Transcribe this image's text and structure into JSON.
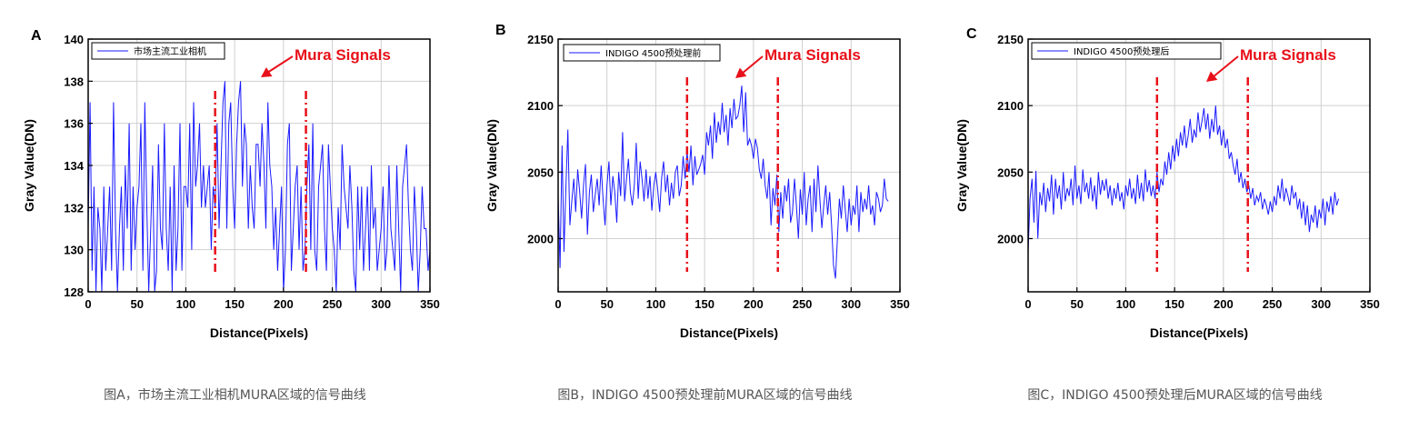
{
  "chart_data": [
    {
      "type": "line",
      "panel_letter": "A",
      "xlabel": "Distance(Pixels)",
      "ylabel": "Gray Value(DN)",
      "xlim": [
        0,
        350
      ],
      "ylim": [
        128,
        140
      ],
      "xticks": [
        0,
        50,
        100,
        150,
        200,
        250,
        300,
        350
      ],
      "yticks": [
        128,
        130,
        132,
        134,
        136,
        138,
        140
      ],
      "grid": true,
      "legend_position": "top-left",
      "series": [
        {
          "name": "市场主流工业相机",
          "color": "#1a1aff",
          "x_start": 0,
          "x_step": 2,
          "values": [
            131,
            137,
            129,
            133,
            128,
            132,
            131,
            128,
            133,
            129,
            131,
            133,
            129,
            137,
            131,
            128,
            131,
            133,
            129,
            134,
            131,
            136,
            129,
            133,
            130,
            132,
            133,
            136,
            129,
            137,
            132,
            128,
            131,
            134,
            128,
            129,
            135,
            131,
            130,
            136,
            131,
            129,
            133,
            128,
            134,
            129,
            131,
            136,
            129,
            133,
            133,
            132,
            136,
            130,
            137,
            133,
            134,
            136,
            132,
            134,
            132,
            133,
            134,
            130,
            133,
            132,
            136,
            131,
            134,
            137,
            138,
            131,
            136,
            137,
            133,
            131,
            135,
            137,
            138,
            133,
            136,
            135,
            131,
            134,
            132,
            131,
            135,
            135,
            133,
            136,
            134,
            131,
            137,
            134,
            133,
            130,
            132,
            129,
            131,
            133,
            128,
            130,
            135,
            136,
            129,
            131,
            133,
            134,
            130,
            133,
            129,
            130,
            133,
            135,
            130,
            136,
            130,
            129,
            133,
            134,
            135,
            131,
            129,
            135,
            133,
            131,
            130,
            128,
            132,
            130,
            135,
            133,
            132,
            131,
            134,
            132,
            129,
            128,
            133,
            130,
            133,
            129,
            131,
            133,
            129,
            134,
            131,
            132,
            129,
            130,
            131,
            133,
            129,
            130,
            134,
            131,
            130,
            129,
            134,
            131,
            128,
            133,
            134,
            135,
            132,
            130,
            129,
            133,
            131,
            128,
            130,
            133,
            131,
            131,
            129,
            130
          ]
        }
      ],
      "annotations": [
        {
          "text": "Mura Signals",
          "color": "#e8101a"
        }
      ],
      "mura_lines_x": [
        130,
        223
      ]
    },
    {
      "type": "line",
      "panel_letter": "B",
      "xlabel": "Distance(Pixels)",
      "ylabel": "Gray Value(DN)",
      "xlim": [
        0,
        350
      ],
      "ylim": [
        1960,
        2150
      ],
      "xticks": [
        0,
        50,
        100,
        150,
        200,
        250,
        300,
        350
      ],
      "yticks": [
        2000,
        2050,
        2100,
        2150
      ],
      "grid": true,
      "legend_position": "top-left",
      "series": [
        {
          "name": "INDIGO 4500预处理前",
          "color": "#1a1aff",
          "x_start": 0,
          "x_step": 2,
          "values": [
            2032,
            1978,
            2070,
            1990,
            2040,
            2082,
            2010,
            2028,
            2045,
            2020,
            2052,
            2036,
            2015,
            2040,
            2056,
            2003,
            2035,
            2048,
            2020,
            2033,
            2045,
            2025,
            2055,
            2030,
            2010,
            2040,
            2058,
            2025,
            2047,
            2035,
            2012,
            2050,
            2032,
            2080,
            2028,
            2045,
            2060,
            2035,
            2025,
            2040,
            2072,
            2030,
            2058,
            2044,
            2028,
            2052,
            2030,
            2047,
            2021,
            2040,
            2050,
            2036,
            2020,
            2046,
            2058,
            2035,
            2048,
            2025,
            2042,
            2030,
            2050,
            2055,
            2032,
            2040,
            2062,
            2045,
            2065,
            2050,
            2070,
            2040,
            2062,
            2048,
            2052,
            2056,
            2063,
            2048,
            2080,
            2070,
            2085,
            2060,
            2095,
            2072,
            2088,
            2078,
            2102,
            2080,
            2093,
            2070,
            2098,
            2083,
            2105,
            2090,
            2092,
            2100,
            2115,
            2080,
            2110,
            2070,
            2075,
            2070,
            2060,
            2075,
            2068,
            2052,
            2045,
            2060,
            2040,
            2030,
            2050,
            2010,
            2038,
            2025,
            2048,
            2005,
            2035,
            2015,
            2040,
            2028,
            2045,
            2012,
            2020,
            2045,
            2025,
            2000,
            2037,
            2018,
            2050,
            2010,
            2030,
            2040,
            2005,
            2045,
            2020,
            2055,
            2030,
            2008,
            2025,
            2040,
            2018,
            2035,
            2010,
            1980,
            1970,
            2000,
            2030,
            2015,
            2040,
            2022,
            2005,
            2030,
            2010,
            2025,
            2018,
            2040,
            2005,
            2035,
            2020,
            2030,
            2022,
            2040,
            2018,
            2025,
            2010,
            2035,
            2030,
            2020,
            2025,
            2045,
            2030,
            2028
          ]
        }
      ],
      "annotations": [
        {
          "text": "Mura Signals",
          "color": "#e8101a"
        }
      ],
      "mura_lines_x": [
        132,
        225
      ]
    },
    {
      "type": "line",
      "panel_letter": "C",
      "xlabel": "Distance(Pixels)",
      "ylabel": "Gray Value(DN)",
      "xlim": [
        0,
        350
      ],
      "ylim": [
        1960,
        2150
      ],
      "xticks": [
        0,
        50,
        100,
        150,
        200,
        250,
        300,
        350
      ],
      "yticks": [
        2000,
        2050,
        2100,
        2150
      ],
      "grid": true,
      "legend_position": "top-left",
      "series": [
        {
          "name": "INDIGO 4500预处理后",
          "color": "#1a1aff",
          "x_start": 0,
          "x_step": 2,
          "values": [
            1990,
            2030,
            2045,
            2012,
            2051,
            2000,
            2035,
            2025,
            2042,
            2020,
            2038,
            2028,
            2048,
            2018,
            2045,
            2030,
            2040,
            2022,
            2050,
            2028,
            2038,
            2032,
            2045,
            2025,
            2055,
            2030,
            2040,
            2026,
            2052,
            2035,
            2042,
            2030,
            2046,
            2028,
            2040,
            2022,
            2050,
            2033,
            2044,
            2036,
            2045,
            2030,
            2040,
            2025,
            2038,
            2030,
            2042,
            2028,
            2035,
            2022,
            2040,
            2032,
            2045,
            2030,
            2038,
            2026,
            2048,
            2030,
            2042,
            2028,
            2052,
            2035,
            2044,
            2032,
            2040,
            2030,
            2050,
            2035,
            2045,
            2040,
            2058,
            2048,
            2065,
            2052,
            2070,
            2058,
            2075,
            2062,
            2080,
            2070,
            2085,
            2068,
            2078,
            2090,
            2072,
            2082,
            2076,
            2095,
            2080,
            2088,
            2098,
            2082,
            2094,
            2075,
            2090,
            2080,
            2100,
            2078,
            2085,
            2070,
            2082,
            2068,
            2075,
            2060,
            2065,
            2055,
            2048,
            2060,
            2042,
            2050,
            2038,
            2045,
            2035,
            2040,
            2030,
            2038,
            2025,
            2032,
            2028,
            2035,
            2022,
            2030,
            2025,
            2018,
            2028,
            2020,
            2032,
            2025,
            2040,
            2030,
            2045,
            2028,
            2038,
            2032,
            2025,
            2040,
            2030,
            2035,
            2022,
            2030,
            2015,
            2028,
            2010,
            2025,
            2005,
            2018,
            2012,
            2025,
            2008,
            2022,
            2015,
            2030,
            2010,
            2028,
            2020,
            2032,
            2018,
            2035,
            2025,
            2030
          ]
        }
      ],
      "annotations": [
        {
          "text": "Mura Signals",
          "color": "#e8101a"
        }
      ],
      "mura_lines_x": [
        132,
        225
      ]
    }
  ],
  "captions": [
    "图A，市场主流工业相机MURA区域的信号曲线",
    "图B，INDIGO 4500预处理前MURA区域的信号曲线",
    "图C，INDIGO 4500预处理后MURA区域的信号曲线"
  ]
}
